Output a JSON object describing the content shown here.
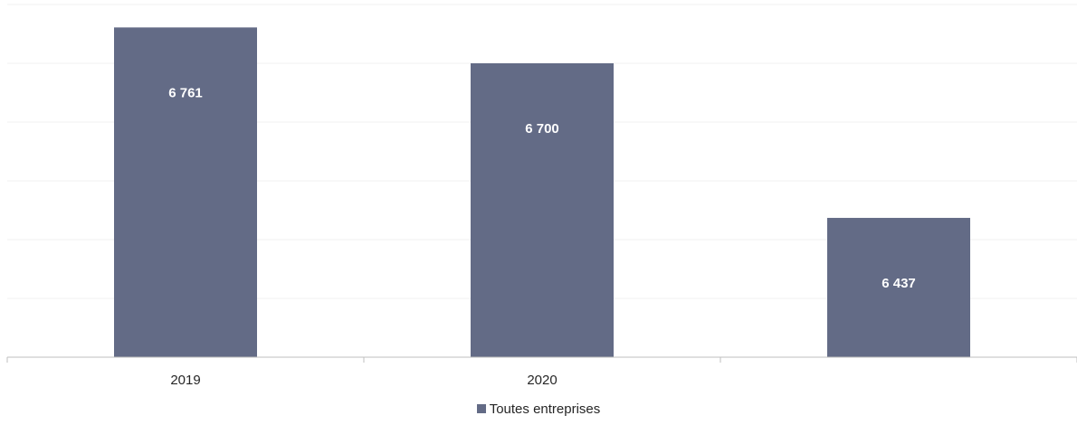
{
  "chart_data": {
    "type": "bar",
    "categories": [
      "2019",
      "2020",
      ""
    ],
    "series": [
      {
        "name": "Toutes entreprises",
        "values": [
          6761,
          6700,
          6437
        ],
        "labels": [
          "6 761",
          "6 700",
          "6 437"
        ]
      }
    ],
    "ylim": [
      6200,
      6800
    ],
    "grid": true,
    "legend_position": "bottom",
    "colors": {
      "bar": "#636b86",
      "grid": "#f0f0f0",
      "axis": "#bfbfbf"
    }
  },
  "legend": {
    "label": "Toutes entreprises"
  }
}
